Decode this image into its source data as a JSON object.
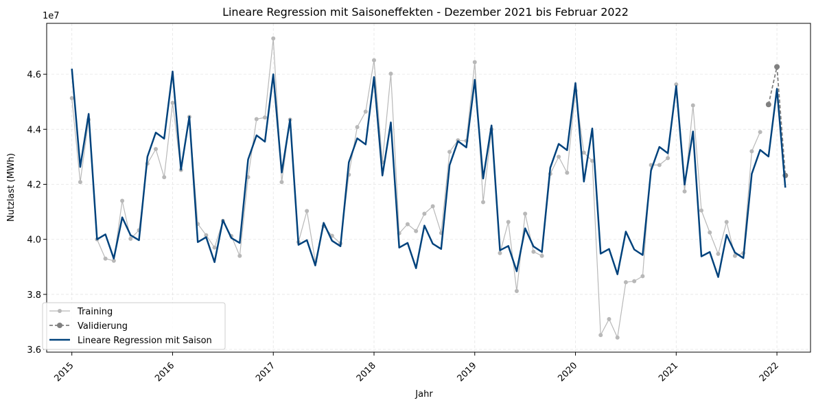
{
  "chart_data": {
    "type": "line",
    "title": "Lineare Regression mit Saisoneffekten - Dezember 2021 bis Februar 2022",
    "xlabel": "Jahr",
    "ylabel": "Nutzlast (MWh)",
    "y_offset_label": "1e7",
    "x_tick_labels": [
      "2015",
      "2016",
      "2017",
      "2018",
      "2019",
      "2020",
      "2021",
      "2022"
    ],
    "y_tick_labels": [
      "3.6",
      "3.8",
      "4.0",
      "4.2",
      "4.4",
      "4.6"
    ],
    "y_ticks": [
      3.6,
      3.8,
      4.0,
      4.2,
      4.4,
      4.6
    ],
    "ylim": [
      3.59,
      4.785
    ],
    "xlim": [
      "2014-10",
      "2022-05"
    ],
    "grid": true,
    "legend_position": "lower-left",
    "colors": {
      "training": "#b8b8b8",
      "validation": "#808080",
      "regression": "#00427c",
      "grid": "#e5e5e5"
    },
    "series": [
      {
        "name": "Training",
        "style": "line-markers",
        "x": [
          "2015-01",
          "2015-02",
          "2015-03",
          "2015-04",
          "2015-05",
          "2015-06",
          "2015-07",
          "2015-08",
          "2015-09",
          "2015-10",
          "2015-11",
          "2015-12",
          "2016-01",
          "2016-02",
          "2016-03",
          "2016-04",
          "2016-05",
          "2016-06",
          "2016-07",
          "2016-08",
          "2016-09",
          "2016-10",
          "2016-11",
          "2016-12",
          "2017-01",
          "2017-02",
          "2017-03",
          "2017-04",
          "2017-05",
          "2017-06",
          "2017-07",
          "2017-08",
          "2017-09",
          "2017-10",
          "2017-11",
          "2017-12",
          "2018-01",
          "2018-02",
          "2018-03",
          "2018-04",
          "2018-05",
          "2018-06",
          "2018-07",
          "2018-08",
          "2018-09",
          "2018-10",
          "2018-11",
          "2018-12",
          "2019-01",
          "2019-02",
          "2019-03",
          "2019-04",
          "2019-05",
          "2019-06",
          "2019-07",
          "2019-08",
          "2019-09",
          "2019-10",
          "2019-11",
          "2019-12",
          "2020-01",
          "2020-02",
          "2020-03",
          "2020-04",
          "2020-05",
          "2020-06",
          "2020-07",
          "2020-08",
          "2020-09",
          "2020-10",
          "2020-11",
          "2020-12",
          "2021-01",
          "2021-02",
          "2021-03",
          "2021-04",
          "2021-05",
          "2021-06",
          "2021-07",
          "2021-08",
          "2021-09",
          "2021-10",
          "2021-11"
        ],
        "values": [
          4.513,
          4.208,
          4.435,
          4.0,
          3.93,
          3.922,
          4.14,
          4.002,
          4.033,
          4.275,
          4.328,
          4.226,
          4.496,
          4.252,
          4.445,
          4.056,
          4.015,
          3.97,
          4.067,
          4.012,
          3.94,
          4.226,
          4.437,
          4.443,
          4.73,
          4.208,
          4.435,
          3.99,
          4.103,
          3.92,
          4.048,
          4.013,
          3.985,
          4.235,
          4.408,
          4.464,
          4.651,
          4.28,
          4.602,
          4.022,
          4.055,
          4.03,
          4.093,
          4.12,
          4.023,
          4.318,
          4.36,
          4.358,
          4.644,
          4.135,
          4.4,
          3.95,
          4.063,
          3.812,
          4.093,
          3.955,
          3.94,
          4.238,
          4.3,
          4.242,
          4.54,
          4.315,
          4.285,
          3.652,
          3.71,
          3.643,
          3.844,
          3.848,
          3.866,
          4.27,
          4.27,
          4.295,
          4.563,
          4.174,
          4.487,
          4.105,
          4.025,
          3.947,
          4.063,
          3.94,
          3.95,
          4.32,
          4.39
        ]
      },
      {
        "name": "Validierung",
        "style": "dashed-markers",
        "x": [
          "2021-12",
          "2022-01",
          "2022-02"
        ],
        "values": [
          4.49,
          4.627,
          4.232
        ]
      },
      {
        "name": "Lineare Regression mit Saison",
        "style": "line",
        "x": [
          "2015-01",
          "2015-02",
          "2015-03",
          "2015-04",
          "2015-05",
          "2015-06",
          "2015-07",
          "2015-08",
          "2015-09",
          "2015-10",
          "2015-11",
          "2015-12",
          "2016-01",
          "2016-02",
          "2016-03",
          "2016-04",
          "2016-05",
          "2016-06",
          "2016-07",
          "2016-08",
          "2016-09",
          "2016-10",
          "2016-11",
          "2016-12",
          "2017-01",
          "2017-02",
          "2017-03",
          "2017-04",
          "2017-05",
          "2017-06",
          "2017-07",
          "2017-08",
          "2017-09",
          "2017-10",
          "2017-11",
          "2017-12",
          "2018-01",
          "2018-02",
          "2018-03",
          "2018-04",
          "2018-05",
          "2018-06",
          "2018-07",
          "2018-08",
          "2018-09",
          "2018-10",
          "2018-11",
          "2018-12",
          "2019-01",
          "2019-02",
          "2019-03",
          "2019-04",
          "2019-05",
          "2019-06",
          "2019-07",
          "2019-08",
          "2019-09",
          "2019-10",
          "2019-11",
          "2019-12",
          "2020-01",
          "2020-02",
          "2020-03",
          "2020-04",
          "2020-05",
          "2020-06",
          "2020-07",
          "2020-08",
          "2020-09",
          "2020-10",
          "2020-11",
          "2020-12",
          "2021-01",
          "2021-02",
          "2021-03",
          "2021-04",
          "2021-05",
          "2021-06",
          "2021-07",
          "2021-08",
          "2021-09",
          "2021-10",
          "2021-11",
          "2021-12",
          "2022-01",
          "2022-02"
        ],
        "values": [
          4.62,
          4.263,
          4.456,
          4.0,
          4.018,
          3.93,
          4.08,
          4.015,
          3.997,
          4.3,
          4.388,
          4.366,
          4.61,
          4.253,
          4.446,
          3.99,
          4.008,
          3.917,
          4.07,
          4.005,
          3.987,
          4.29,
          4.378,
          4.355,
          4.6,
          4.243,
          4.436,
          3.98,
          3.997,
          3.905,
          4.06,
          3.995,
          3.975,
          4.28,
          4.367,
          4.345,
          4.59,
          4.232,
          4.425,
          3.97,
          3.987,
          3.895,
          4.05,
          3.984,
          3.965,
          4.27,
          4.357,
          4.334,
          4.58,
          4.221,
          4.414,
          3.96,
          3.976,
          3.884,
          4.04,
          3.974,
          3.954,
          4.26,
          4.347,
          4.324,
          4.568,
          4.21,
          4.403,
          3.948,
          3.965,
          3.873,
          4.028,
          3.963,
          3.943,
          4.25,
          4.336,
          4.313,
          4.557,
          4.199,
          4.392,
          3.938,
          3.954,
          3.863,
          4.016,
          3.952,
          3.932,
          4.238,
          4.325,
          4.301,
          4.547,
          4.188
        ]
      }
    ]
  }
}
